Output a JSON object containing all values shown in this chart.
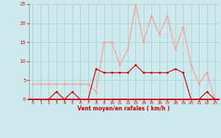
{
  "hours": [
    0,
    1,
    2,
    3,
    4,
    5,
    6,
    7,
    8,
    9,
    10,
    11,
    12,
    13,
    14,
    15,
    16,
    17,
    18,
    19,
    20,
    21,
    22,
    23
  ],
  "vent_moyen": [
    0,
    0,
    0,
    2,
    0,
    2,
    0,
    0,
    8,
    7,
    7,
    7,
    7,
    9,
    7,
    7,
    7,
    7,
    8,
    7,
    0,
    0,
    2,
    0
  ],
  "rafales": [
    4,
    4,
    4,
    4,
    4,
    4,
    4,
    4,
    2,
    15,
    15,
    9,
    13,
    25,
    15,
    22,
    17,
    22,
    13,
    19,
    9,
    4,
    7,
    0
  ],
  "bg_color": "#cce9ee",
  "grid_color": "#aacccc",
  "line_moyen_color": "#cc0000",
  "line_rafales_color": "#ff9999",
  "xlabel": "Vent moyen/en rafales ( km/h )",
  "ylim": [
    0,
    25
  ],
  "yticks": [
    0,
    5,
    10,
    15,
    20,
    25
  ],
  "xlim": [
    -0.5,
    23.5
  ],
  "xticks": [
    0,
    1,
    2,
    3,
    4,
    5,
    6,
    7,
    8,
    9,
    10,
    11,
    12,
    13,
    14,
    15,
    16,
    17,
    18,
    19,
    20,
    21,
    22,
    23
  ]
}
